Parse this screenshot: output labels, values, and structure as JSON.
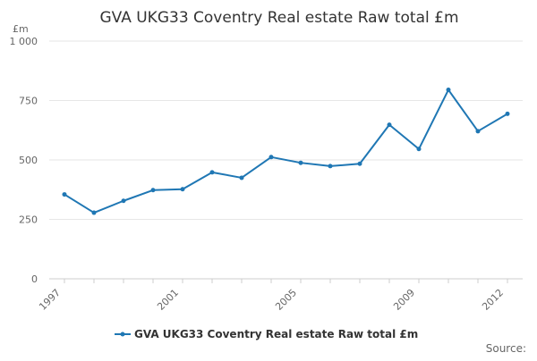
{
  "chart_data": {
    "type": "line",
    "title": "GVA UKG33 Coventry Real estate Raw total £m",
    "ylabel": "£m",
    "xlabel": "",
    "x": [
      1997,
      1998,
      1999,
      2000,
      2001,
      2002,
      2003,
      2004,
      2005,
      2006,
      2007,
      2008,
      2009,
      2010,
      2011,
      2012
    ],
    "x_tick_labels": [
      "1997",
      "2001",
      "2005",
      "2009",
      "2012"
    ],
    "y_ticks": [
      0,
      250,
      500,
      750,
      1000
    ],
    "y_tick_labels": [
      "0",
      "250",
      "500",
      "750",
      "1 000"
    ],
    "ylim": [
      0,
      1000
    ],
    "grid": true,
    "legend_position": "bottom",
    "series": [
      {
        "name": "GVA UKG33 Coventry Real estate Raw total £m",
        "color": "#1f77b4",
        "values": [
          355,
          278,
          328,
          373,
          377,
          448,
          425,
          512,
          488,
          474,
          484,
          648,
          546,
          795,
          621,
          694
        ]
      }
    ]
  },
  "footer": {
    "source_label": "Source:"
  },
  "colors": {
    "series": "#1f77b4",
    "grid": "#e6e6e6",
    "axis_text": "#666666",
    "title": "#333333"
  }
}
